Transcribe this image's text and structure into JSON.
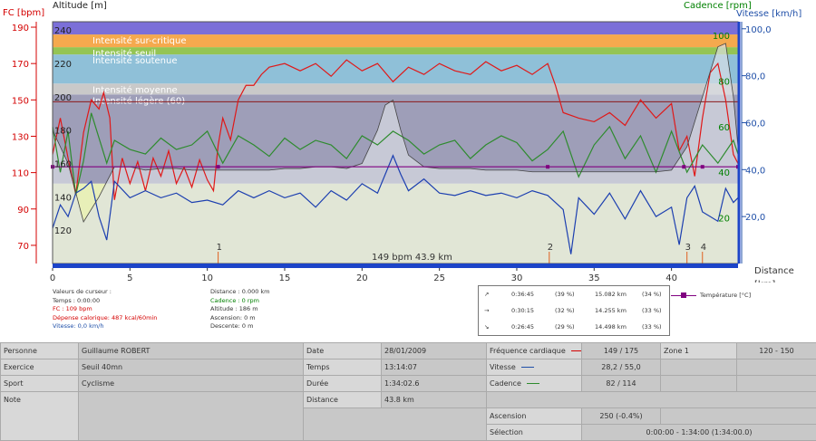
{
  "chart_data": {
    "type": "line",
    "axes": {
      "fc": {
        "label": "FC [bpm]",
        "ticks": [
          70,
          90,
          110,
          130,
          150,
          170,
          190
        ],
        "range": [
          60,
          193
        ],
        "color": "#d40000"
      },
      "altitude": {
        "label": "Altitude  [m]",
        "ticks": [
          120,
          140,
          160,
          180,
          200,
          220,
          240
        ],
        "range": [
          100,
          245
        ]
      },
      "cadence": {
        "label": "Cadence [rpm]",
        "ticks": [
          20,
          40,
          60,
          80,
          100
        ],
        "range": [
          0,
          106
        ],
        "color": "#008000"
      },
      "vitesse": {
        "label": "Vitesse [km/h]",
        "ticks": [
          "20,0",
          "40,0",
          "60,0",
          "80,0",
          "100,0"
        ],
        "tick_values": [
          20,
          40,
          60,
          80,
          100
        ],
        "range": [
          0,
          103
        ],
        "color": "#1f4fa8"
      },
      "distance": {
        "label": "Distance",
        "unit": "[km]",
        "ticks": [
          0,
          5,
          10,
          15,
          20,
          25,
          30,
          35,
          40
        ],
        "range": [
          0,
          44.3
        ]
      }
    },
    "zones": [
      {
        "name": "",
        "fc_from": 104,
        "fc_to": 60,
        "color": "#e8efb8"
      },
      {
        "name": "Intensité légère (60)",
        "fc_from": 153,
        "fc_to": 104,
        "color": "#9e9eb8"
      },
      {
        "name": "Intensité moyenne",
        "fc_from": 159,
        "fc_to": 153,
        "color": "#c9c9c9"
      },
      {
        "name": "Intensité soutenue",
        "fc_from": 175,
        "fc_to": 159,
        "color": "#8fc0d8"
      },
      {
        "name": "Intensité seuil",
        "fc_from": 179,
        "fc_to": 175,
        "color": "#94c454"
      },
      {
        "name": "Intensité sur-critique",
        "fc_from": 186,
        "fc_to": 179,
        "color": "#f5a94e"
      },
      {
        "name": "",
        "fc_from": 193,
        "fc_to": 186,
        "color": "#7b6fd8"
      }
    ],
    "series": [
      {
        "axis": "fc",
        "color": "#e01818",
        "x": [
          0,
          0.5,
          1,
          1.5,
          2,
          2.5,
          3,
          3.3,
          3.7,
          4,
          4.5,
          5,
          5.5,
          6,
          6.5,
          7,
          7.5,
          8,
          8.5,
          9,
          9.5,
          10,
          10.4,
          10.7,
          11,
          11.5,
          12,
          12.5,
          13,
          13.5,
          14,
          15,
          16,
          17,
          18,
          19,
          20,
          21,
          22,
          23,
          24,
          25,
          26,
          27,
          28,
          29,
          30,
          31,
          32,
          32.5,
          33,
          34,
          35,
          36,
          37,
          38,
          39,
          40,
          40.5,
          41,
          41.5,
          42,
          42.5,
          43,
          43.5,
          44,
          44.3
        ],
        "y": [
          120,
          140,
          118,
          98,
          132,
          150,
          145,
          154,
          140,
          95,
          118,
          104,
          116,
          100,
          118,
          108,
          122,
          104,
          113,
          102,
          117,
          106,
          100,
          125,
          140,
          128,
          150,
          158,
          158,
          164,
          168,
          170,
          166,
          170,
          163,
          172,
          166,
          170,
          160,
          168,
          164,
          170,
          166,
          164,
          171,
          166,
          169,
          164,
          170,
          158,
          143,
          140,
          138,
          143,
          136,
          150,
          140,
          148,
          122,
          130,
          108,
          140,
          165,
          170,
          150,
          120,
          115
        ]
      },
      {
        "axis": "cadence",
        "color": "#2e8b2e",
        "x": [
          0,
          0.5,
          1,
          1.5,
          2,
          2.5,
          3,
          3.5,
          4,
          5,
          6,
          7,
          8,
          9,
          10,
          11,
          12,
          13,
          14,
          15,
          16,
          17,
          18,
          19,
          20,
          21,
          22,
          23,
          24,
          25,
          26,
          27,
          28,
          29,
          30,
          31,
          32,
          33,
          34,
          35,
          36,
          37,
          38,
          39,
          40,
          41,
          42,
          43,
          44,
          44.3
        ],
        "y": [
          60,
          40,
          58,
          30,
          45,
          66,
          55,
          44,
          54,
          50,
          48,
          55,
          50,
          52,
          58,
          44,
          56,
          52,
          47,
          55,
          50,
          54,
          52,
          46,
          56,
          52,
          58,
          54,
          48,
          52,
          54,
          46,
          52,
          56,
          53,
          45,
          50,
          58,
          38,
          52,
          60,
          46,
          56,
          40,
          58,
          40,
          52,
          44,
          54,
          48
        ]
      },
      {
        "axis": "vitesse",
        "color": "#1c3fb0",
        "x": [
          0,
          0.5,
          1,
          1.5,
          2,
          2.5,
          3,
          3.5,
          4,
          5,
          6,
          7,
          8,
          9,
          10,
          11,
          12,
          13,
          14,
          15,
          16,
          17,
          18,
          19,
          20,
          21,
          22,
          22.5,
          23,
          24,
          25,
          26,
          27,
          28,
          29,
          30,
          31,
          32,
          33,
          33.5,
          34,
          35,
          36,
          37,
          38,
          39,
          40,
          40.5,
          41,
          41.5,
          42,
          42.5,
          43,
          43.5,
          44,
          44.3
        ],
        "y": [
          15,
          25,
          20,
          30,
          32,
          35,
          20,
          10,
          35,
          28,
          31,
          28,
          30,
          26,
          27,
          25,
          31,
          28,
          31,
          28,
          30,
          24,
          31,
          27,
          34,
          30,
          46,
          38,
          31,
          36,
          30,
          29,
          31,
          29,
          30,
          28,
          31,
          29,
          23,
          4,
          28,
          21,
          30,
          19,
          31,
          20,
          24,
          8,
          28,
          33,
          22,
          20,
          18,
          32,
          26,
          28
        ]
      },
      {
        "axis": "altitude",
        "color": "#444444",
        "fill": "#dde0e6",
        "x": [
          0,
          1,
          2,
          3,
          4,
          5,
          6,
          7,
          8,
          9,
          10,
          11,
          12,
          13,
          14,
          15,
          16,
          17,
          18,
          19,
          20,
          21,
          21.5,
          22,
          22.5,
          23,
          24,
          25,
          26,
          27,
          28,
          29,
          30,
          31,
          32,
          33,
          34,
          35,
          36,
          37,
          38,
          39,
          40,
          41,
          42,
          42.5,
          43,
          43.5,
          44,
          44.3
        ],
        "y": [
          180,
          160,
          125,
          140,
          158,
          158,
          156,
          157,
          157,
          156,
          156,
          156,
          156,
          156,
          156,
          157,
          157,
          158,
          158,
          157,
          160,
          180,
          195,
          198,
          180,
          165,
          158,
          157,
          157,
          157,
          156,
          156,
          156,
          155,
          155,
          155,
          155,
          155,
          155,
          155,
          155,
          155,
          156,
          170,
          200,
          215,
          230,
          232,
          200,
          170
        ]
      },
      {
        "axis": "altitude",
        "color": "#800080",
        "marker": true,
        "x": [
          0,
          10.7,
          32,
          40.8,
          42,
          44.3
        ],
        "y": [
          158,
          158,
          158,
          158,
          158,
          158
        ]
      }
    ],
    "ref_line": {
      "axis": "fc",
      "value": 149
    },
    "markers": [
      {
        "label": "1",
        "x": 10.7
      },
      {
        "label": "2",
        "x": 32.1
      },
      {
        "label": "3",
        "x": 41
      },
      {
        "label": "4",
        "x": 42
      }
    ],
    "bottom_label": "149 bpm 43.9 km"
  },
  "cursor_panel": {
    "col1": [
      {
        "text": "Valeurs de curseur :",
        "color": "#333333"
      },
      {
        "text": "Temps : 0:00:00",
        "color": "#333333"
      },
      {
        "text": "FC : 109 bpm",
        "color": "#d40000"
      },
      {
        "text": "Dépense calorique: 487 kcal/60min",
        "color": "#d40000"
      },
      {
        "text": "Vitesse: 0,0 km/h",
        "color": "#1f4fa8"
      }
    ],
    "col2": [
      {
        "text": "Distance : 0.000 km",
        "color": "#333333"
      },
      {
        "text": "Cadence : 0 rpm",
        "color": "#008000"
      },
      {
        "text": "Altitude : 186 m",
        "color": "#333333"
      },
      {
        "text": "Ascension: 0 m",
        "color": "#333333"
      },
      {
        "text": "Descente: 0 m",
        "color": "#333333"
      }
    ]
  },
  "terrain_table": [
    {
      "icon": "↗",
      "time": "0:36:45",
      "pct_time": "(39 %)",
      "dist": "15.082 km",
      "pct_dist": "(34 %)"
    },
    {
      "icon": "→",
      "time": "0:30:15",
      "pct_time": "(32 %)",
      "dist": "14.255 km",
      "pct_dist": "(33 %)"
    },
    {
      "icon": "↘",
      "time": "0:26:45",
      "pct_time": "(29 %)",
      "dist": "14.498 km",
      "pct_dist": "(33 %)"
    }
  ],
  "temp_legend": "Température [°C]",
  "info": {
    "personne_label": "Personne",
    "personne": "Guillaume ROBERT",
    "exercice_label": "Exercice",
    "exercice": "Seuil 40mn",
    "sport_label": "Sport",
    "sport": "Cyclisme",
    "note_label": "Note",
    "date_label": "Date",
    "date": "28/01/2009",
    "temps_label": "Temps",
    "temps": "13:14:07",
    "duree_label": "Durée",
    "duree": "1:34:02.6",
    "distance_label": "Distance",
    "distance": "43.8 km",
    "fc_label": "Fréquence cardiaque",
    "fc_value": "149 / 175",
    "fc_color": "#d40000",
    "vitesse_label": "Vitesse",
    "vitesse_value": "28,2 / 55,0",
    "vitesse_color": "#1f4fa8",
    "cadence_label": "Cadence",
    "cadence_value": "82 / 114",
    "cadence_color": "#2e8b2e",
    "zone_label": "Zone 1",
    "zone_value": "120 - 150",
    "ascension_label": "Ascension",
    "ascension_value": "250 (-0.4%)",
    "selection_label": "Sélection",
    "selection_value": "0:00:00 - 1:34:00 (1:34:00.0)"
  }
}
